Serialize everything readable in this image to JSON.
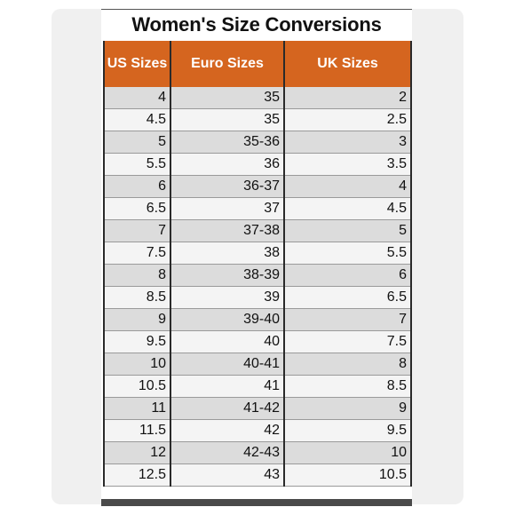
{
  "title": "Women's Size Conversions",
  "table": {
    "headers": [
      "US Sizes",
      "Euro Sizes",
      "UK Sizes"
    ],
    "rows": [
      [
        "4",
        "35",
        "2"
      ],
      [
        "4.5",
        "35",
        "2.5"
      ],
      [
        "5",
        "35-36",
        "3"
      ],
      [
        "5.5",
        "36",
        "3.5"
      ],
      [
        "6",
        "36-37",
        "4"
      ],
      [
        "6.5",
        "37",
        "4.5"
      ],
      [
        "7",
        "37-38",
        "5"
      ],
      [
        "7.5",
        "38",
        "5.5"
      ],
      [
        "8",
        "38-39",
        "6"
      ],
      [
        "8.5",
        "39",
        "6.5"
      ],
      [
        "9",
        "39-40",
        "7"
      ],
      [
        "9.5",
        "40",
        "7.5"
      ],
      [
        "10",
        "40-41",
        "8"
      ],
      [
        "10.5",
        "41",
        "8.5"
      ],
      [
        "11",
        "41-42",
        "9"
      ],
      [
        "11.5",
        "42",
        "9.5"
      ],
      [
        "12",
        "42-43",
        "10"
      ],
      [
        "12.5",
        "43",
        "10.5"
      ]
    ]
  },
  "colors": {
    "header_bg": "#d5651f",
    "row_odd": "#dcdcdc",
    "row_even": "#f4f4f4"
  }
}
